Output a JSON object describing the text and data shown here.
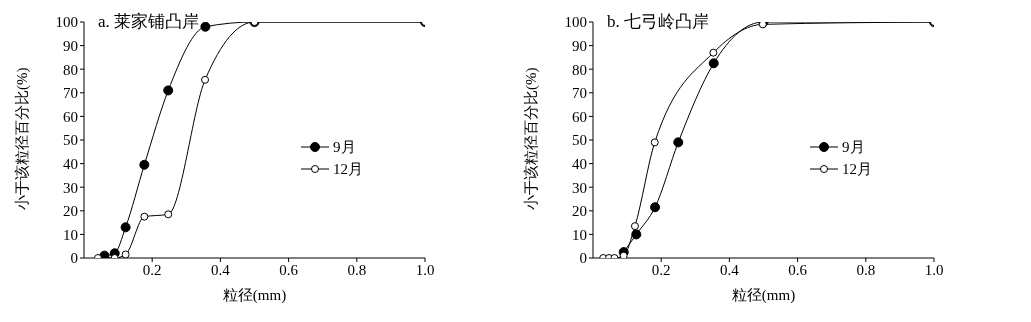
{
  "chart_data": [
    {
      "type": "line",
      "title": "a. 莱家铺凸岸",
      "xlabel": "粒径(mm)",
      "ylabel": "小于该粒径百分比(%)",
      "xlim": [
        0,
        1.0
      ],
      "xticks": [
        {
          "value": 0.2,
          "label": "0.2"
        },
        {
          "value": 0.4,
          "label": "0.4"
        },
        {
          "value": 0.6,
          "label": "0.6"
        },
        {
          "value": 0.8,
          "label": "0.8"
        },
        {
          "value": 1.0,
          "label": "1.0"
        }
      ],
      "ylim": [
        0,
        100
      ],
      "yticks": [
        0,
        10,
        20,
        30,
        40,
        50,
        60,
        70,
        80,
        90,
        100
      ],
      "legend": "right",
      "marker": "circle",
      "series": [
        {
          "name": "9月",
          "color": "#000000",
          "x": [
            0.06,
            0.09,
            0.122,
            0.177,
            0.247,
            0.356,
            0.5,
            1.0
          ],
          "values": [
            1,
            2,
            13,
            39.5,
            71,
            98,
            100,
            100
          ]
        },
        {
          "name": "12月",
          "color": "#000000",
          "x": [
            0.041,
            0.09,
            0.122,
            0.177,
            0.247,
            0.355,
            0.5,
            1.0
          ],
          "values": [
            0,
            0,
            1.5,
            17.5,
            18.5,
            75.5,
            100,
            100
          ]
        }
      ]
    },
    {
      "type": "line",
      "title": "b. 七弓岭凸岸",
      "xlabel": "粒径(mm)",
      "ylabel": "小于该粒径百分比(%)",
      "xlim": [
        0,
        1.0
      ],
      "xticks": [
        {
          "value": 0.2,
          "label": "0.2"
        },
        {
          "value": 0.4,
          "label": "0.4"
        },
        {
          "value": 0.6,
          "label": "0.6"
        },
        {
          "value": 0.8,
          "label": "0.8"
        },
        {
          "value": 1.0,
          "label": "1.0"
        }
      ],
      "ylim": [
        0,
        100
      ],
      "yticks": [
        0,
        10,
        20,
        30,
        40,
        50,
        60,
        70,
        80,
        90,
        100
      ],
      "legend": "right",
      "marker": "circle",
      "series": [
        {
          "name": "9月",
          "color": "#000000",
          "x": [
            0.09,
            0.127,
            0.182,
            0.25,
            0.354,
            0.5,
            1.0
          ],
          "values": [
            2.5,
            10,
            21.5,
            49,
            82.5,
            100,
            100
          ]
        },
        {
          "name": "12月",
          "color": "#000000",
          "x": [
            0.03,
            0.047,
            0.063,
            0.09,
            0.123,
            0.181,
            0.353,
            0.498,
            1.0
          ],
          "values": [
            0,
            0,
            0,
            1,
            13.5,
            49,
            87,
            99,
            100
          ]
        }
      ]
    }
  ]
}
